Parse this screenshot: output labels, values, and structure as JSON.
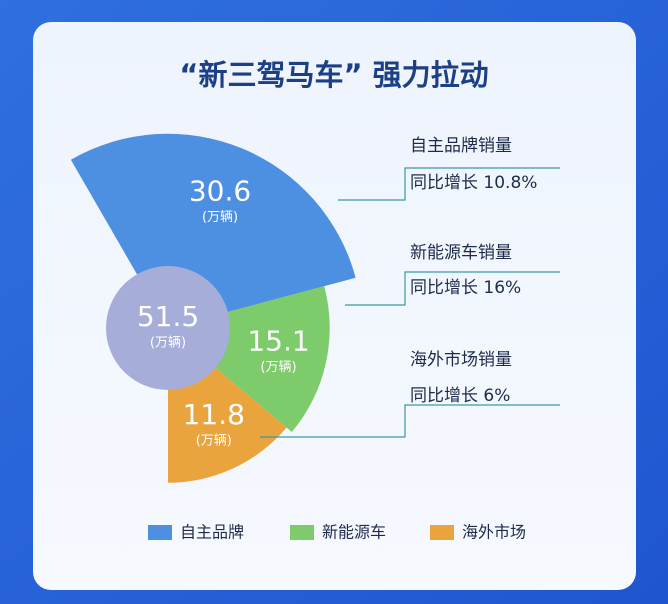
{
  "chart_data": {
    "type": "rose",
    "title": "“新三驾马车” 强力拉动",
    "categories": [
      "自主品牌",
      "新能源车",
      "海外市场"
    ],
    "values": [
      30.6,
      15.1,
      11.8
    ],
    "colors": [
      "#4d8fe0",
      "#7dcb6b",
      "#e9a43d"
    ],
    "unit": "(万辆)",
    "total": 51.5,
    "total_color": "#a7add9",
    "annotations": [
      {
        "title": "自主品牌销量",
        "text": "同比增长 10.8%"
      },
      {
        "title": "新能源车销量",
        "text": "同比增长 16%"
      },
      {
        "title": "海外市场销量",
        "text": "同比增长 6%"
      }
    ]
  }
}
